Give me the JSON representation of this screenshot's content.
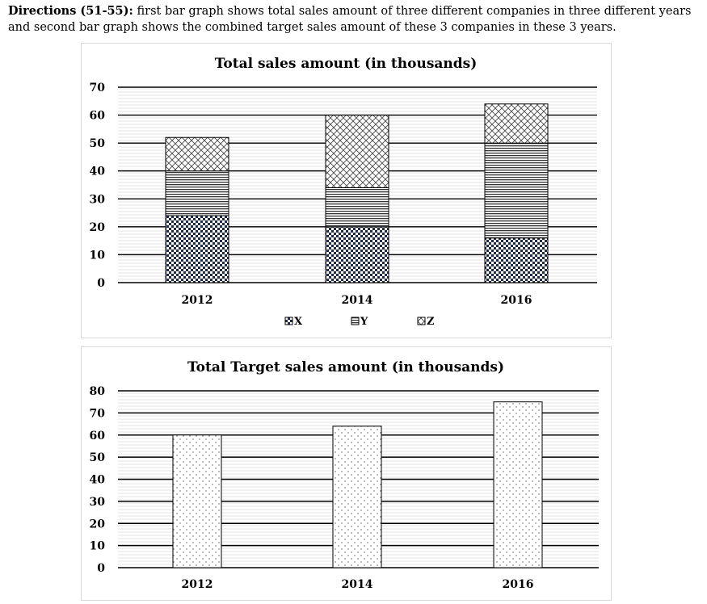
{
  "directions": {
    "label": "Directions (51-55):",
    "text": " first bar graph shows total sales amount of three different companies in three different years and second bar graph shows the combined target sales amount of these 3 companies in these 3 years."
  },
  "chart_data": [
    {
      "type": "bar",
      "stacked": true,
      "title": "Total sales amount (in thousands)",
      "categories": [
        "2012",
        "2014",
        "2016"
      ],
      "series": [
        {
          "name": "X",
          "values": [
            24,
            20,
            16
          ],
          "pattern": "checker"
        },
        {
          "name": "Y",
          "values": [
            16,
            14,
            34
          ],
          "pattern": "horizontal-lines"
        },
        {
          "name": "Z",
          "values": [
            12,
            26,
            14
          ],
          "pattern": "crosshatch"
        }
      ],
      "ylim": [
        0,
        70
      ],
      "yticks": [
        0,
        10,
        20,
        30,
        40,
        50,
        60,
        70
      ],
      "grid": true,
      "legend": "bottom"
    },
    {
      "type": "bar",
      "title": "Total Target sales amount (in thousands)",
      "categories": [
        "2012",
        "2014",
        "2016"
      ],
      "values": [
        60,
        64,
        75
      ],
      "pattern": "dots",
      "ylim": [
        0,
        80
      ],
      "yticks": [
        0,
        10,
        20,
        30,
        40,
        50,
        60,
        70,
        80
      ],
      "grid": true
    }
  ]
}
